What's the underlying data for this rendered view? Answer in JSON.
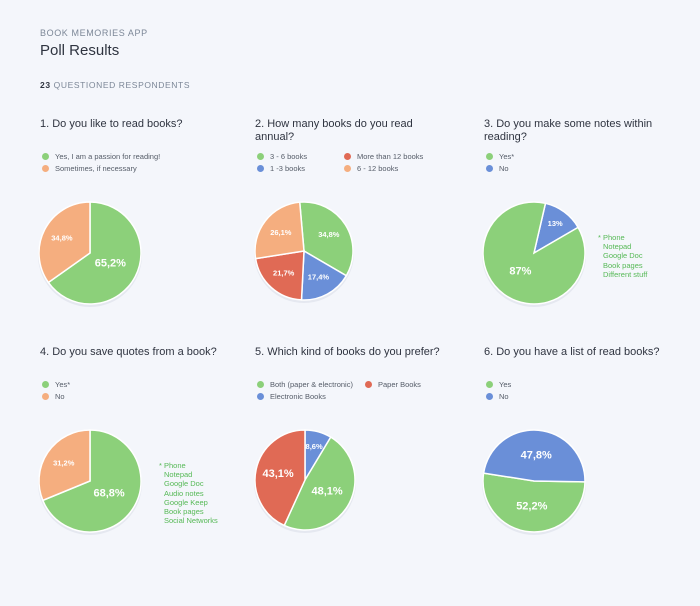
{
  "header": {
    "app_name": "BOOK MEMORIES APP",
    "title": "Poll Results",
    "respondents_count": "23",
    "respondents_label": "QUESTIONED RESPONDENTS"
  },
  "colors": {
    "green": "#8cd07a",
    "orange": "#f5ae7f",
    "blue": "#6a8fd8",
    "red": "#e06a55",
    "footnote_green": "#56b956"
  },
  "questions": [
    {
      "title": "1. Do you like to read books?",
      "legend": [
        {
          "label": "Yes, I am a passion for reading!",
          "color": "#8cd07a"
        },
        {
          "label": "Sometimes, if necessary",
          "color": "#f5ae7f"
        }
      ],
      "footnote": []
    },
    {
      "title": "2. How many books do you read annual?",
      "legend": [
        {
          "label": "3 - 6 books",
          "color": "#8cd07a"
        },
        {
          "label": "More than 12 books",
          "color": "#e06a55"
        },
        {
          "label": "1 -3 books",
          "color": "#6a8fd8"
        },
        {
          "label": "6 - 12 books",
          "color": "#f5ae7f"
        }
      ],
      "footnote": []
    },
    {
      "title": "3. Do you make some notes within reading?",
      "legend": [
        {
          "label": "Yes*",
          "color": "#8cd07a"
        },
        {
          "label": "No",
          "color": "#6a8fd8"
        }
      ],
      "footnote": [
        "* Phone",
        "Notepad",
        "Google Doc",
        "Book pages",
        "Different stuff"
      ]
    },
    {
      "title": "4. Do you save quotes from a book?",
      "legend": [
        {
          "label": "Yes*",
          "color": "#8cd07a"
        },
        {
          "label": "No",
          "color": "#f5ae7f"
        }
      ],
      "footnote": [
        "* Phone",
        "Notepad",
        "Google Doc",
        "Audio notes",
        "Google Keep",
        "Book pages",
        "Social Networks"
      ]
    },
    {
      "title": "5. Which kind of books do you prefer?",
      "legend": [
        {
          "label": "Both (paper & electronic)",
          "color": "#8cd07a"
        },
        {
          "label": "Paper Books",
          "color": "#e06a55"
        },
        {
          "label": "Electronic Books",
          "color": "#6a8fd8"
        }
      ],
      "footnote": []
    },
    {
      "title": "6. Do you have a list of read books?",
      "legend": [
        {
          "label": "Yes",
          "color": "#8cd07a"
        },
        {
          "label": "No",
          "color": "#6a8fd8"
        }
      ],
      "footnote": []
    }
  ],
  "chart_data": [
    {
      "type": "pie",
      "title": "1. Do you like to read books?",
      "categories": [
        "Yes, I am a passion for reading!",
        "Sometimes, if necessary"
      ],
      "values": [
        65.2,
        34.8
      ],
      "labels": [
        "65,2%",
        "34,8%"
      ],
      "colors": [
        "#8cd07a",
        "#f5ae7f"
      ]
    },
    {
      "type": "pie",
      "title": "2. How many books do you read annual?",
      "categories": [
        "3 - 6 books",
        "1 -3 books",
        "More than 12 books",
        "6 - 12 books"
      ],
      "values": [
        34.8,
        17.4,
        21.7,
        26.1
      ],
      "labels": [
        "34,8%",
        "17,4%",
        "21,7%",
        "26,1%"
      ],
      "colors": [
        "#8cd07a",
        "#6a8fd8",
        "#e06a55",
        "#f5ae7f"
      ]
    },
    {
      "type": "pie",
      "title": "3. Do you make some notes within reading?",
      "categories": [
        "No",
        "Yes*"
      ],
      "values": [
        13,
        87
      ],
      "labels": [
        "13%",
        "87%"
      ],
      "colors": [
        "#6a8fd8",
        "#8cd07a"
      ]
    },
    {
      "type": "pie",
      "title": "4. Do you save quotes from a book?",
      "categories": [
        "Yes*",
        "No"
      ],
      "values": [
        68.8,
        31.2
      ],
      "labels": [
        "68,8%",
        "31,2%"
      ],
      "colors": [
        "#8cd07a",
        "#f5ae7f"
      ]
    },
    {
      "type": "pie",
      "title": "5. Which kind of books do you prefer?",
      "categories": [
        "Electronic Books",
        "Both (paper & electronic)",
        "Paper Books"
      ],
      "values": [
        8.6,
        48.1,
        43.1
      ],
      "labels": [
        "8,6%",
        "48,1%",
        "43,1%"
      ],
      "colors": [
        "#6a8fd8",
        "#8cd07a",
        "#e06a55"
      ]
    },
    {
      "type": "pie",
      "title": "6. Do you have a list of read books?",
      "categories": [
        "Yes",
        "No"
      ],
      "values": [
        52.2,
        47.8
      ],
      "labels": [
        "52,2%",
        "47,8%"
      ],
      "colors": [
        "#8cd07a",
        "#6a8fd8"
      ]
    }
  ]
}
